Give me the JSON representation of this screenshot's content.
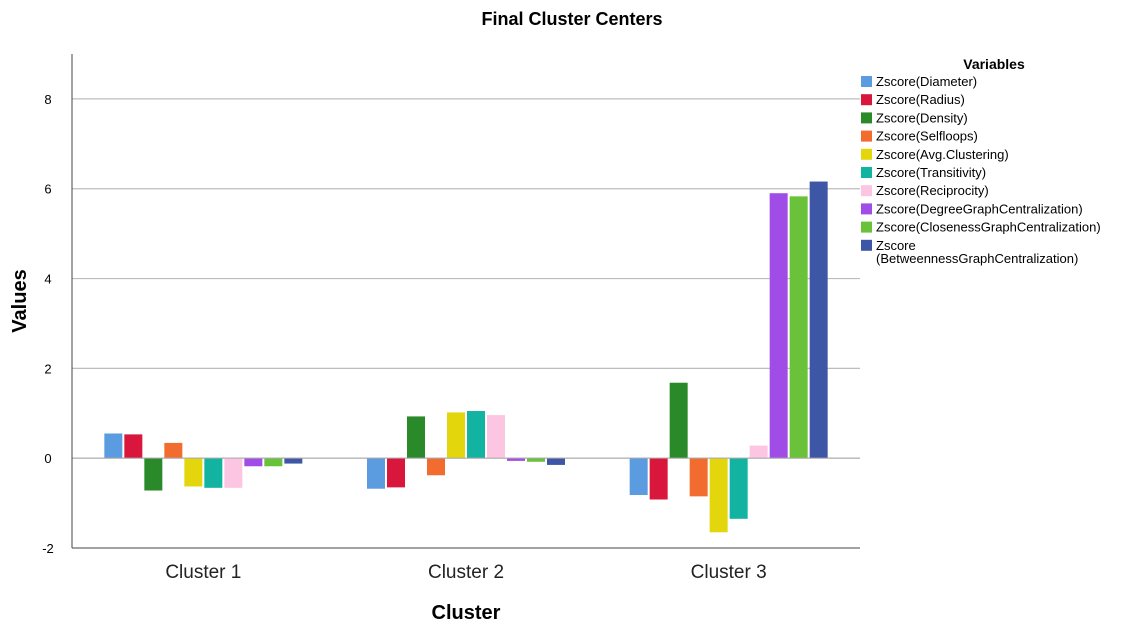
{
  "chart_data": {
    "type": "bar",
    "title": "Final Cluster Centers",
    "xlabel": "Cluster",
    "ylabel": "Values",
    "ylim": [
      -2,
      9
    ],
    "yticks": [
      -2,
      0,
      2,
      4,
      6,
      8
    ],
    "grid": true,
    "legend_title": "Variables",
    "legend_position": "top-right",
    "categories": [
      "Cluster 1",
      "Cluster 2",
      "Cluster 3"
    ],
    "series": [
      {
        "name": "Zscore(Diameter)",
        "color": "#5b9bdf",
        "values": [
          0.55,
          -0.68,
          -0.82
        ]
      },
      {
        "name": "Zscore(Radius)",
        "color": "#d9163b",
        "values": [
          0.53,
          -0.65,
          -0.92
        ]
      },
      {
        "name": "Zscore(Density)",
        "color": "#2a8a2a",
        "values": [
          -0.72,
          0.93,
          1.68
        ]
      },
      {
        "name": "Zscore(Selfloops)",
        "color": "#f26c2f",
        "values": [
          0.34,
          -0.38,
          -0.85
        ]
      },
      {
        "name": "Zscore(Avg.Clustering)",
        "color": "#e3d60d",
        "values": [
          -0.63,
          1.02,
          -1.65
        ]
      },
      {
        "name": "Zscore(Transitivity)",
        "color": "#12b3a0",
        "values": [
          -0.66,
          1.05,
          -1.35
        ]
      },
      {
        "name": "Zscore(Reciprocity)",
        "color": "#fcc6e2",
        "values": [
          -0.66,
          0.96,
          0.28
        ]
      },
      {
        "name": "Zscore(DegreeGraphCentralization)",
        "color": "#a04ce6",
        "values": [
          -0.18,
          -0.06,
          5.9
        ]
      },
      {
        "name": "Zscore(ClosenessGraphCentralization)",
        "color": "#69c23a",
        "values": [
          -0.18,
          -0.08,
          5.83
        ]
      },
      {
        "name": "Zscore\n(BetweennessGraphCentralization)",
        "color": "#3e56a6",
        "values": [
          -0.12,
          -0.15,
          6.16
        ]
      }
    ]
  }
}
